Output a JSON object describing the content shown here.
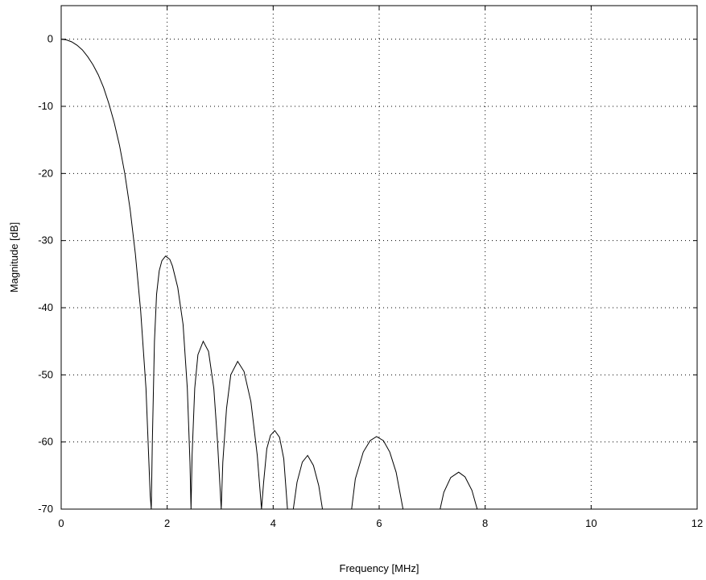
{
  "chart_data": {
    "type": "line",
    "title": "",
    "xlabel": "Frequency [MHz]",
    "ylabel": "Magnitude [dB]",
    "xlim": [
      0,
      12
    ],
    "ylim": [
      -70,
      5
    ],
    "grid": true,
    "xticks": [
      0,
      2,
      4,
      6,
      8,
      10,
      12
    ],
    "yticks": [
      0,
      -10,
      -20,
      -30,
      -40,
      -50,
      -60,
      -70
    ],
    "xtick_labels": [
      "0",
      "2",
      "4",
      "6",
      "8",
      "10",
      "12"
    ],
    "ytick_labels": [
      "0",
      "-10",
      "-20",
      "-30",
      "-40",
      "-50",
      "-60",
      "-70"
    ],
    "series": [
      {
        "color": "#000000",
        "x": [
          0,
          0.1,
          0.2,
          0.3,
          0.4,
          0.5,
          0.6,
          0.7,
          0.8,
          0.9,
          1.0,
          1.1,
          1.2,
          1.3,
          1.4,
          1.5,
          1.6,
          1.68,
          1.7,
          1.72,
          1.76,
          1.8,
          1.85,
          1.9,
          1.97,
          2.05,
          2.1,
          2.2,
          2.3,
          2.38,
          2.43,
          2.45,
          2.47,
          2.52,
          2.58,
          2.68,
          2.78,
          2.88,
          2.95,
          3.02,
          3.05,
          3.12,
          3.2,
          3.33,
          3.45,
          3.58,
          3.7,
          3.78,
          3.82,
          3.88,
          3.95,
          4.03,
          4.12,
          4.2,
          4.27,
          4.38,
          4.45,
          4.55,
          4.65,
          4.76,
          4.86,
          4.93,
          5.48,
          5.55,
          5.7,
          5.83,
          5.95,
          6.08,
          6.2,
          6.32,
          6.45,
          7.15,
          7.22,
          7.35,
          7.5,
          7.62,
          7.75,
          7.85
        ],
        "y": [
          0,
          -0.1,
          -0.4,
          -0.9,
          -1.6,
          -2.6,
          -3.8,
          -5.3,
          -7.2,
          -9.6,
          -12.4,
          -15.8,
          -20.0,
          -25.3,
          -32.0,
          -40.5,
          -52.0,
          -68.0,
          -70,
          -60.0,
          -45.0,
          -38.0,
          -34.5,
          -33.0,
          -32.3,
          -32.8,
          -33.8,
          -37.0,
          -42.5,
          -52.0,
          -63.0,
          -70,
          -62.0,
          -52.0,
          -47.0,
          -45.0,
          -46.5,
          -52.0,
          -60.0,
          -70,
          -63.0,
          -55.0,
          -50.0,
          -48.0,
          -49.5,
          -54.0,
          -62.0,
          -70,
          -66.0,
          -61.0,
          -59.0,
          -58.3,
          -59.3,
          -62.5,
          -70,
          -70,
          -66.0,
          -63.0,
          -62.0,
          -63.5,
          -66.5,
          -70,
          -70,
          -65.5,
          -61.5,
          -59.8,
          -59.2,
          -59.8,
          -61.5,
          -64.5,
          -70,
          -70,
          -67.5,
          -65.3,
          -64.5,
          -65.2,
          -67.2,
          -70
        ]
      }
    ]
  }
}
